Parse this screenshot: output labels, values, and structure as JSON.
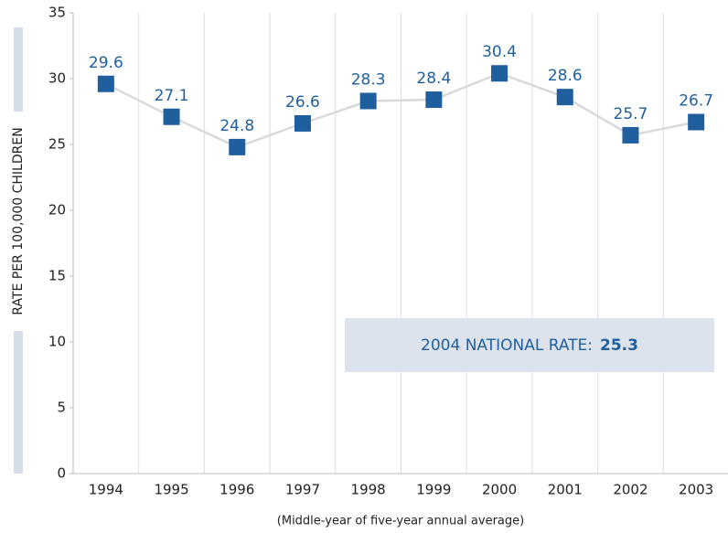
{
  "chart_data": {
    "type": "line",
    "y_label": "RATE PER 100,000 CHILDREN",
    "x_label": "(Middle-year of five-year annual average)",
    "categories": [
      "1994",
      "1995",
      "1996",
      "1997",
      "1998",
      "1999",
      "2000",
      "2001",
      "2002",
      "2003"
    ],
    "series": [
      {
        "color": "#1f5f9e",
        "line_color": "#d9d9d9",
        "values": [
          29.6,
          27.1,
          24.8,
          26.6,
          28.3,
          28.4,
          30.4,
          28.6,
          25.7,
          26.7
        ]
      }
    ],
    "ylim": [
      0,
      35
    ],
    "yticks": [
      0,
      5,
      10,
      15,
      20,
      25,
      30,
      35
    ],
    "grid": "vertical",
    "annotation": {
      "text": "2004 NATIONAL RATE:",
      "value": 25.3
    }
  }
}
